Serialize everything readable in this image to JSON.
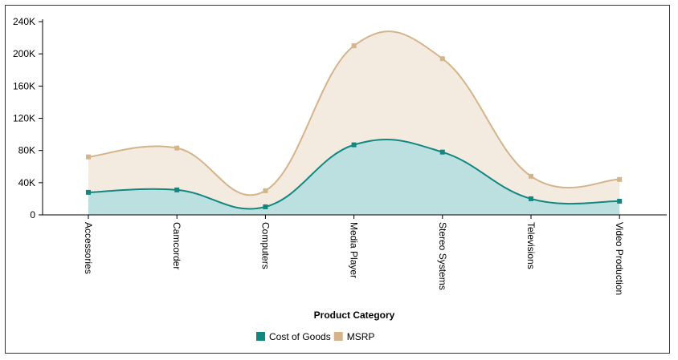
{
  "chart_data": {
    "type": "area",
    "title": "",
    "xlabel": "Product Category",
    "ylabel": "",
    "categories": [
      "Accessories",
      "Camcorder",
      "Computers",
      "Media Player",
      "Stereo Systems",
      "Televisions",
      "Video Production"
    ],
    "series": [
      {
        "name": "Cost of Goods",
        "values": [
          28000,
          31000,
          10000,
          87000,
          78000,
          20000,
          17000
        ],
        "color": "#138680",
        "fill": "#bcdfe0"
      },
      {
        "name": "MSRP",
        "values": [
          72000,
          83000,
          30000,
          210000,
          194000,
          48000,
          44000
        ],
        "color": "#d4b48a",
        "fill": "#f3eae0"
      }
    ],
    "yticks": [
      "0",
      "40K",
      "80K",
      "120K",
      "160K",
      "200K",
      "240K"
    ],
    "ytick_values": [
      0,
      40000,
      80000,
      120000,
      160000,
      200000,
      240000
    ],
    "ylim": [
      0,
      240000
    ],
    "grid": false,
    "legend": "bottom-center",
    "curve": "smooth"
  }
}
